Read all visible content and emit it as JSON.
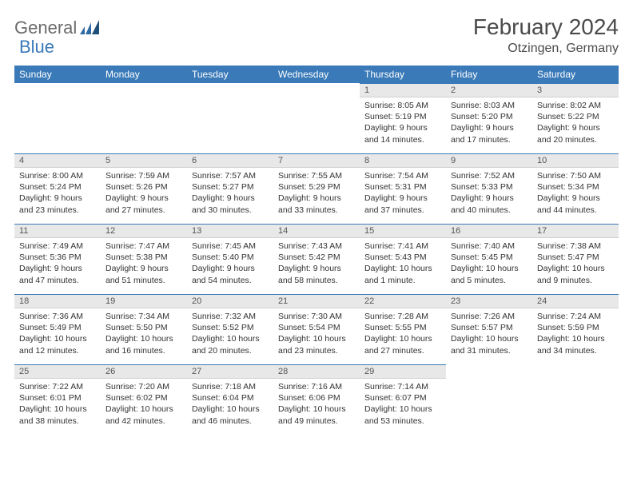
{
  "logo": {
    "part1": "General",
    "part2": "Blue"
  },
  "title": "February 2024",
  "location": "Otzingen, Germany",
  "colors": {
    "header_bg": "#3a7ab8",
    "header_fg": "#ffffff",
    "daynum_bg": "#e8e8e8",
    "border": "#3a7ab8",
    "text": "#333333"
  },
  "weekdays": [
    "Sunday",
    "Monday",
    "Tuesday",
    "Wednesday",
    "Thursday",
    "Friday",
    "Saturday"
  ],
  "weeks": [
    [
      {
        "n": "",
        "sr": "",
        "ss": "",
        "dl": ""
      },
      {
        "n": "",
        "sr": "",
        "ss": "",
        "dl": ""
      },
      {
        "n": "",
        "sr": "",
        "ss": "",
        "dl": ""
      },
      {
        "n": "",
        "sr": "",
        "ss": "",
        "dl": ""
      },
      {
        "n": "1",
        "sr": "Sunrise: 8:05 AM",
        "ss": "Sunset: 5:19 PM",
        "dl": "Daylight: 9 hours and 14 minutes."
      },
      {
        "n": "2",
        "sr": "Sunrise: 8:03 AM",
        "ss": "Sunset: 5:20 PM",
        "dl": "Daylight: 9 hours and 17 minutes."
      },
      {
        "n": "3",
        "sr": "Sunrise: 8:02 AM",
        "ss": "Sunset: 5:22 PM",
        "dl": "Daylight: 9 hours and 20 minutes."
      }
    ],
    [
      {
        "n": "4",
        "sr": "Sunrise: 8:00 AM",
        "ss": "Sunset: 5:24 PM",
        "dl": "Daylight: 9 hours and 23 minutes."
      },
      {
        "n": "5",
        "sr": "Sunrise: 7:59 AM",
        "ss": "Sunset: 5:26 PM",
        "dl": "Daylight: 9 hours and 27 minutes."
      },
      {
        "n": "6",
        "sr": "Sunrise: 7:57 AM",
        "ss": "Sunset: 5:27 PM",
        "dl": "Daylight: 9 hours and 30 minutes."
      },
      {
        "n": "7",
        "sr": "Sunrise: 7:55 AM",
        "ss": "Sunset: 5:29 PM",
        "dl": "Daylight: 9 hours and 33 minutes."
      },
      {
        "n": "8",
        "sr": "Sunrise: 7:54 AM",
        "ss": "Sunset: 5:31 PM",
        "dl": "Daylight: 9 hours and 37 minutes."
      },
      {
        "n": "9",
        "sr": "Sunrise: 7:52 AM",
        "ss": "Sunset: 5:33 PM",
        "dl": "Daylight: 9 hours and 40 minutes."
      },
      {
        "n": "10",
        "sr": "Sunrise: 7:50 AM",
        "ss": "Sunset: 5:34 PM",
        "dl": "Daylight: 9 hours and 44 minutes."
      }
    ],
    [
      {
        "n": "11",
        "sr": "Sunrise: 7:49 AM",
        "ss": "Sunset: 5:36 PM",
        "dl": "Daylight: 9 hours and 47 minutes."
      },
      {
        "n": "12",
        "sr": "Sunrise: 7:47 AM",
        "ss": "Sunset: 5:38 PM",
        "dl": "Daylight: 9 hours and 51 minutes."
      },
      {
        "n": "13",
        "sr": "Sunrise: 7:45 AM",
        "ss": "Sunset: 5:40 PM",
        "dl": "Daylight: 9 hours and 54 minutes."
      },
      {
        "n": "14",
        "sr": "Sunrise: 7:43 AM",
        "ss": "Sunset: 5:42 PM",
        "dl": "Daylight: 9 hours and 58 minutes."
      },
      {
        "n": "15",
        "sr": "Sunrise: 7:41 AM",
        "ss": "Sunset: 5:43 PM",
        "dl": "Daylight: 10 hours and 1 minute."
      },
      {
        "n": "16",
        "sr": "Sunrise: 7:40 AM",
        "ss": "Sunset: 5:45 PM",
        "dl": "Daylight: 10 hours and 5 minutes."
      },
      {
        "n": "17",
        "sr": "Sunrise: 7:38 AM",
        "ss": "Sunset: 5:47 PM",
        "dl": "Daylight: 10 hours and 9 minutes."
      }
    ],
    [
      {
        "n": "18",
        "sr": "Sunrise: 7:36 AM",
        "ss": "Sunset: 5:49 PM",
        "dl": "Daylight: 10 hours and 12 minutes."
      },
      {
        "n": "19",
        "sr": "Sunrise: 7:34 AM",
        "ss": "Sunset: 5:50 PM",
        "dl": "Daylight: 10 hours and 16 minutes."
      },
      {
        "n": "20",
        "sr": "Sunrise: 7:32 AM",
        "ss": "Sunset: 5:52 PM",
        "dl": "Daylight: 10 hours and 20 minutes."
      },
      {
        "n": "21",
        "sr": "Sunrise: 7:30 AM",
        "ss": "Sunset: 5:54 PM",
        "dl": "Daylight: 10 hours and 23 minutes."
      },
      {
        "n": "22",
        "sr": "Sunrise: 7:28 AM",
        "ss": "Sunset: 5:55 PM",
        "dl": "Daylight: 10 hours and 27 minutes."
      },
      {
        "n": "23",
        "sr": "Sunrise: 7:26 AM",
        "ss": "Sunset: 5:57 PM",
        "dl": "Daylight: 10 hours and 31 minutes."
      },
      {
        "n": "24",
        "sr": "Sunrise: 7:24 AM",
        "ss": "Sunset: 5:59 PM",
        "dl": "Daylight: 10 hours and 34 minutes."
      }
    ],
    [
      {
        "n": "25",
        "sr": "Sunrise: 7:22 AM",
        "ss": "Sunset: 6:01 PM",
        "dl": "Daylight: 10 hours and 38 minutes."
      },
      {
        "n": "26",
        "sr": "Sunrise: 7:20 AM",
        "ss": "Sunset: 6:02 PM",
        "dl": "Daylight: 10 hours and 42 minutes."
      },
      {
        "n": "27",
        "sr": "Sunrise: 7:18 AM",
        "ss": "Sunset: 6:04 PM",
        "dl": "Daylight: 10 hours and 46 minutes."
      },
      {
        "n": "28",
        "sr": "Sunrise: 7:16 AM",
        "ss": "Sunset: 6:06 PM",
        "dl": "Daylight: 10 hours and 49 minutes."
      },
      {
        "n": "29",
        "sr": "Sunrise: 7:14 AM",
        "ss": "Sunset: 6:07 PM",
        "dl": "Daylight: 10 hours and 53 minutes."
      },
      {
        "n": "",
        "sr": "",
        "ss": "",
        "dl": ""
      },
      {
        "n": "",
        "sr": "",
        "ss": "",
        "dl": ""
      }
    ]
  ]
}
